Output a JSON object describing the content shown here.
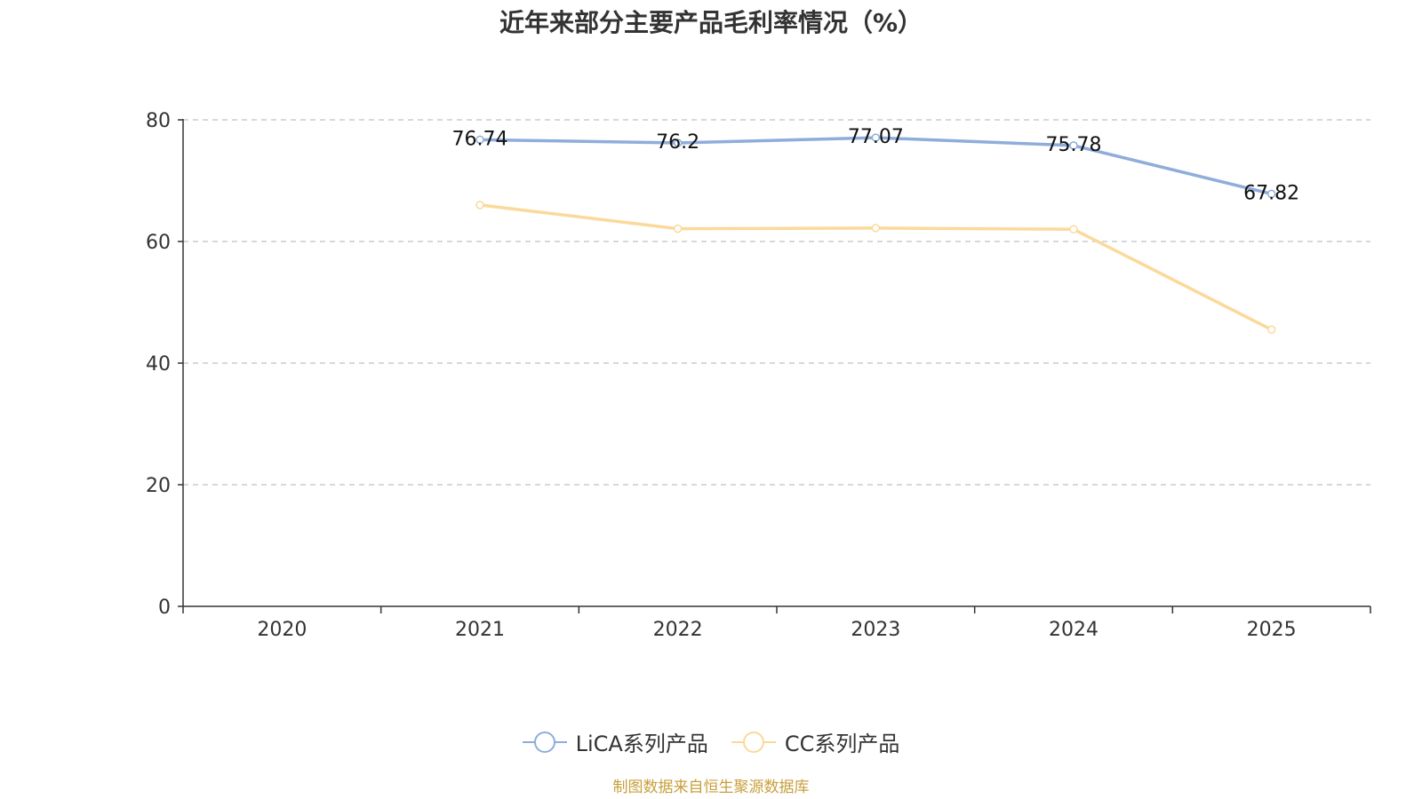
{
  "chart_data": {
    "type": "line",
    "title": "近年来部分主要产品毛利率情况（%）",
    "categories": [
      "2020",
      "2021",
      "2022",
      "2023",
      "2024",
      "2025"
    ],
    "series": [
      {
        "name": "LiCA系列产品",
        "values": [
          null,
          76.74,
          76.2,
          77.07,
          75.78,
          67.82
        ],
        "color": "#8eaddb",
        "show_labels": true
      },
      {
        "name": "CC系列产品",
        "values": [
          null,
          66.0,
          62.1,
          62.2,
          62.0,
          45.5
        ],
        "color": "#fbd99b",
        "show_labels": false
      }
    ],
    "ylim": [
      0,
      80
    ],
    "yticks": [
      0,
      20,
      40,
      60,
      80
    ],
    "grid": true,
    "legend_position": "bottom-center"
  },
  "source_note": "制图数据来自恒生聚源数据库",
  "colors": {
    "axis": "#333333",
    "grid": "#cccccc",
    "source": "#c8a03c"
  }
}
